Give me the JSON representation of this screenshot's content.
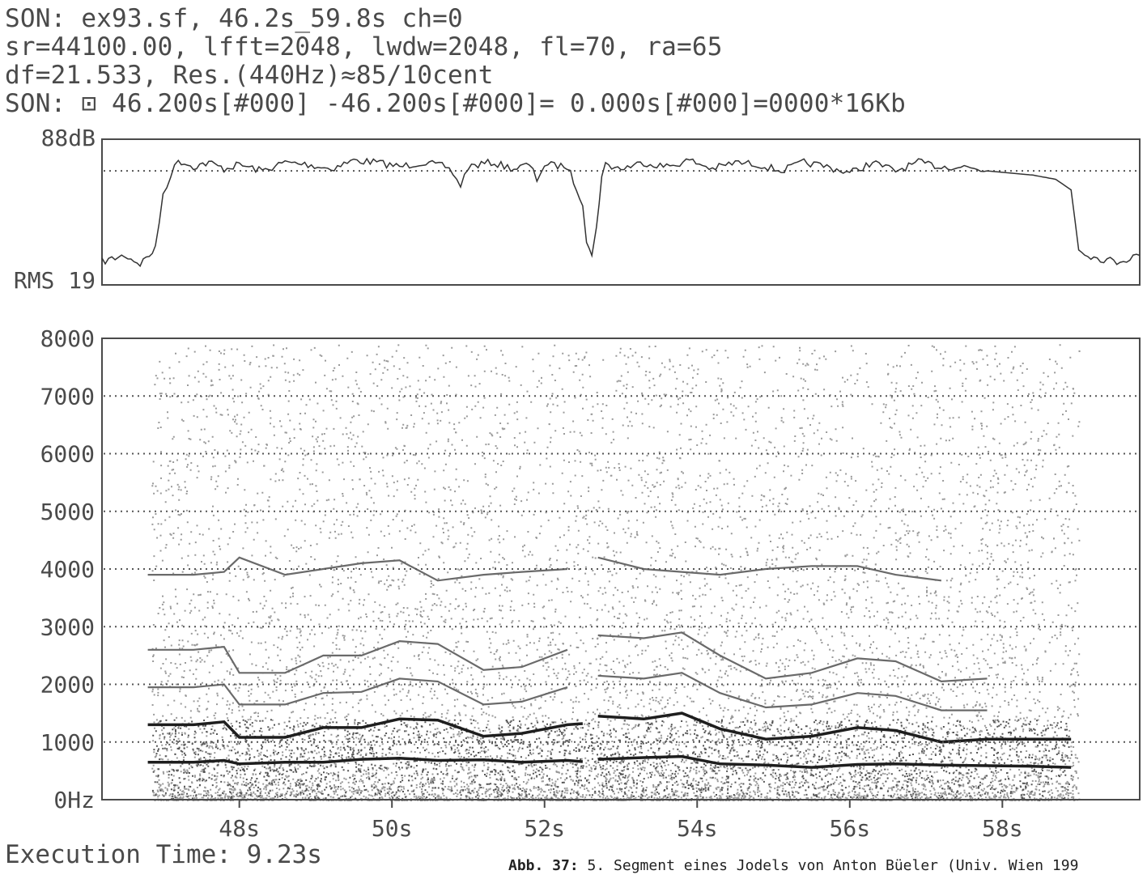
{
  "header": {
    "line1": "SON: ex93.sf, 46.2s_59.8s ch=0",
    "line2": "sr=44100.00, lfft=2048, lwdw=2048, fl=70, ra=65",
    "line3": "df=21.533, Res.(440Hz)≈85/10cent",
    "line4": "SON: ⊡ 46.200s[#000] -46.200s[#000]= 0.000s[#000]=0000*16Kb"
  },
  "footer": {
    "execution_time": "Execution Time: 9.23s",
    "caption_label": "Abb. 37:",
    "caption_text": " 5. Segment eines Jodels von Anton Büeler (Univ. Wien 199"
  },
  "colors": {
    "axis": "#4a4a4a",
    "grid": "#555555",
    "rms_line": "#333333",
    "dark_partial": "#1e1e1e",
    "light_speckle": "#9a9a9a"
  },
  "chart_data": [
    {
      "type": "line",
      "name": "rms_envelope",
      "ylabel_top": "88dB",
      "ylabel_bottom": "RMS 19",
      "ylim": [
        19,
        88
      ],
      "xlim": [
        46.2,
        59.8
      ],
      "reference_level": 73,
      "x": [
        46.2,
        46.5,
        46.7,
        46.9,
        47.0,
        47.1,
        47.2,
        47.4,
        47.6,
        47.8,
        48.0,
        48.3,
        48.6,
        48.9,
        49.2,
        49.5,
        49.8,
        50.1,
        50.4,
        50.7,
        50.8,
        50.9,
        51.0,
        51.3,
        51.6,
        51.8,
        51.9,
        52.0,
        52.3,
        52.5,
        52.55,
        52.62,
        52.68,
        52.75,
        52.8,
        53.0,
        53.3,
        53.6,
        53.9,
        54.2,
        54.5,
        54.8,
        55.1,
        55.4,
        55.7,
        56.0,
        56.3,
        56.6,
        56.9,
        57.2,
        57.5,
        57.8,
        58.1,
        58.4,
        58.7,
        58.9,
        59.0,
        59.2,
        59.5,
        59.8
      ],
      "values": [
        30,
        33,
        29,
        36,
        62,
        71,
        78,
        75,
        77,
        74,
        76,
        73,
        77,
        76,
        74,
        78,
        77,
        75,
        77,
        75,
        72,
        66,
        75,
        77,
        74,
        76,
        69,
        76,
        75,
        58,
        40,
        32,
        47,
        70,
        76,
        74,
        77,
        75,
        78,
        74,
        77,
        76,
        73,
        77,
        75,
        72,
        77,
        73,
        77,
        75,
        75,
        73,
        72,
        71,
        69,
        64,
        36,
        32,
        30,
        33
      ]
    },
    {
      "type": "heatmap",
      "name": "spectrogram",
      "ylabels": [
        "8000",
        "7000",
        "6000",
        "5000",
        "4000",
        "3000",
        "2000",
        "1000",
        "0Hz"
      ],
      "xlabels": [
        "48s",
        "50s",
        "52s",
        "54s",
        "56s",
        "58s"
      ],
      "xticks": [
        48,
        50,
        52,
        54,
        56,
        58
      ],
      "ylim": [
        0,
        8000
      ],
      "xlim": [
        46.2,
        59.8
      ],
      "tracks": [
        {
          "x": [
            46.8,
            47.4,
            47.8,
            48.0,
            48.6,
            49.1,
            49.6,
            50.1,
            50.6,
            51.2,
            51.7,
            52.3,
            52.5
          ],
          "y": [
            650,
            650,
            680,
            620,
            650,
            650,
            700,
            720,
            680,
            690,
            650,
            680,
            660
          ]
        },
        {
          "x": [
            52.7,
            53.3,
            53.8,
            54.3,
            54.9,
            55.5,
            56.1,
            56.6,
            57.2,
            57.8,
            58.4,
            58.9
          ],
          "y": [
            700,
            730,
            750,
            620,
            600,
            560,
            610,
            620,
            600,
            590,
            580,
            560
          ]
        },
        {
          "x": [
            46.8,
            47.4,
            47.8,
            48.0,
            48.6,
            49.1,
            49.6,
            50.1,
            50.6,
            51.2,
            51.7,
            52.3,
            52.5
          ],
          "y": [
            1300,
            1300,
            1350,
            1080,
            1080,
            1250,
            1250,
            1400,
            1380,
            1100,
            1150,
            1300,
            1320
          ]
        },
        {
          "x": [
            52.7,
            53.3,
            53.8,
            54.3,
            54.9,
            55.5,
            56.1,
            56.6,
            57.2,
            57.8,
            58.4,
            58.9
          ],
          "y": [
            1450,
            1400,
            1500,
            1230,
            1050,
            1100,
            1250,
            1200,
            1000,
            1050,
            1050,
            1050
          ]
        },
        {
          "x": [
            46.8,
            47.4,
            47.8,
            48.0,
            48.6,
            49.1,
            49.6,
            50.1,
            50.6,
            51.2,
            51.7,
            52.3
          ],
          "y": [
            1950,
            1950,
            2000,
            1650,
            1650,
            1850,
            1870,
            2100,
            2050,
            1650,
            1700,
            1950
          ]
        },
        {
          "x": [
            52.7,
            53.3,
            53.8,
            54.3,
            54.9,
            55.5,
            56.1,
            56.6,
            57.2,
            57.8
          ],
          "y": [
            2150,
            2100,
            2200,
            1850,
            1600,
            1650,
            1850,
            1800,
            1550,
            1550
          ]
        },
        {
          "x": [
            46.8,
            47.4,
            47.8,
            48.0,
            48.6,
            49.1,
            49.6,
            50.1,
            50.6,
            51.2,
            51.7,
            52.3
          ],
          "y": [
            2600,
            2600,
            2650,
            2200,
            2200,
            2500,
            2500,
            2750,
            2700,
            2250,
            2300,
            2600
          ]
        },
        {
          "x": [
            52.7,
            53.3,
            53.8,
            54.3,
            54.9,
            55.5,
            56.1,
            56.6,
            57.2,
            57.8
          ],
          "y": [
            2850,
            2800,
            2900,
            2500,
            2100,
            2200,
            2450,
            2400,
            2050,
            2100
          ]
        },
        {
          "x": [
            46.8,
            47.4,
            47.8,
            48.0,
            48.6,
            49.1,
            49.6,
            50.1,
            50.6,
            51.2,
            51.7,
            52.3
          ],
          "y": [
            3900,
            3900,
            3950,
            4200,
            3900,
            4000,
            4100,
            4150,
            3800,
            3900,
            3950,
            4000
          ]
        },
        {
          "x": [
            52.7,
            53.3,
            53.8,
            54.3,
            54.9,
            55.5,
            56.1,
            56.6,
            57.2
          ],
          "y": [
            4200,
            4000,
            3950,
            3900,
            4000,
            4050,
            4050,
            3900,
            3800
          ]
        }
      ]
    }
  ]
}
